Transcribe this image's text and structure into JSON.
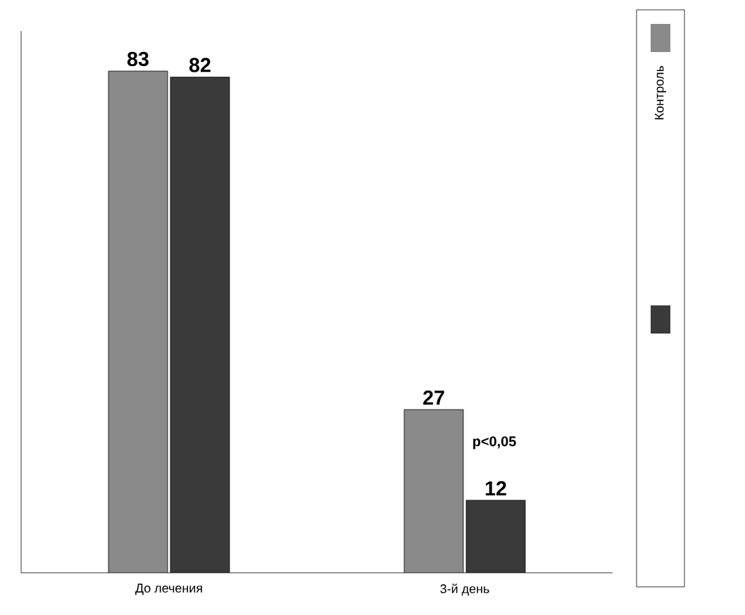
{
  "chart_data": {
    "type": "bar",
    "categories": [
      "До лечения",
      "3-й день"
    ],
    "series": [
      {
        "name": "Контроль",
        "color": "#8a8a8a",
        "values": [
          83,
          27
        ]
      },
      {
        "color": "#3a3a3a",
        "values": [
          82,
          12
        ]
      }
    ],
    "data_labels": true,
    "legend": "right",
    "annotations": [
      "p<0,05"
    ]
  }
}
